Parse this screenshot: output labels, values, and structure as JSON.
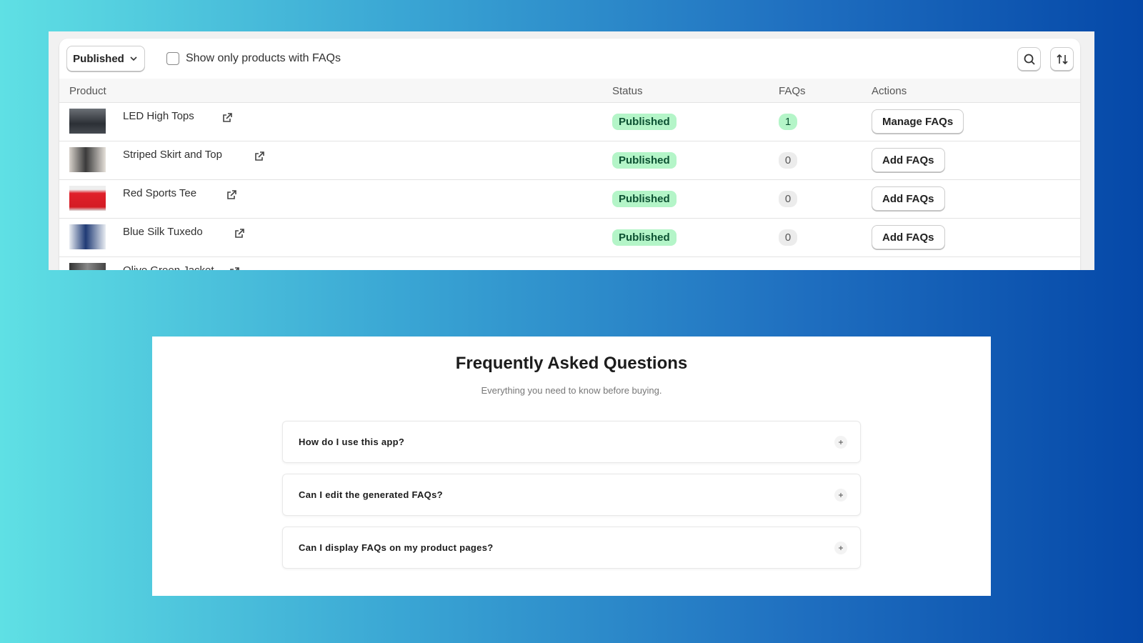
{
  "toolbar": {
    "filter": "Published",
    "checkbox_label": "Show only products with FAQs"
  },
  "table": {
    "headers": [
      "Product",
      "Status",
      "FAQs",
      "Actions"
    ],
    "rows": [
      {
        "product": "LED High Tops",
        "status": "Published",
        "faqs": 1,
        "action": "Manage FAQs"
      },
      {
        "product": "Striped Skirt and Top",
        "status": "Published",
        "faqs": 0,
        "action": "Add FAQs"
      },
      {
        "product": "Red Sports Tee",
        "status": "Published",
        "faqs": 0,
        "action": "Add FAQs"
      },
      {
        "product": "Blue Silk Tuxedo",
        "status": "Published",
        "faqs": 0,
        "action": "Add FAQs"
      },
      {
        "product": "Olive Green Jacket"
      }
    ]
  },
  "faq": {
    "title": "Frequently Asked Questions",
    "subtitle": "Everything you need to know before buying.",
    "questions": [
      "How do I use this app?",
      "Can I edit the generated FAQs?",
      "Can I display FAQs on my product pages?"
    ]
  }
}
